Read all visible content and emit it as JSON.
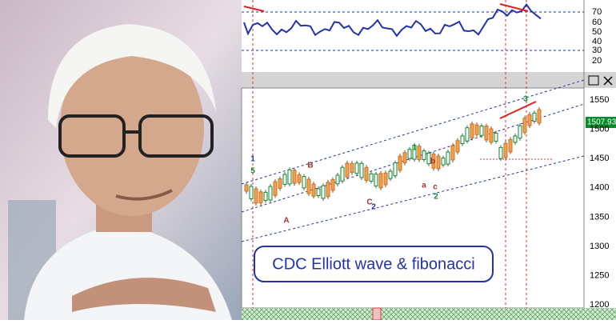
{
  "rsi_panel": {
    "ticks": [
      70,
      60,
      50,
      40,
      30,
      20
    ]
  },
  "price_panel": {
    "ticks": [
      1550,
      1500,
      1450,
      1400,
      1350,
      1300,
      1250,
      1200
    ],
    "price_label": "1507.93"
  },
  "wave_labels": [
    "1",
    "5",
    "B",
    "A",
    "C",
    "2",
    "1",
    "b",
    "a",
    "c",
    "2",
    "3"
  ],
  "banner": "CDC Elliott wave & fibonacci"
}
